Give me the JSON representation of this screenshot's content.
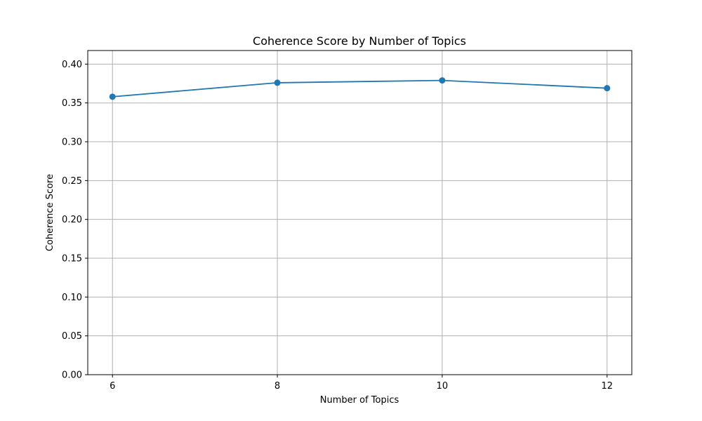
{
  "chart_data": {
    "type": "line",
    "title": "Coherence Score by Number of Topics",
    "xlabel": "Number of Topics",
    "ylabel": "Coherence Score",
    "x": [
      6,
      8,
      10,
      12
    ],
    "series": [
      {
        "values": [
          0.358,
          0.376,
          0.379,
          0.369
        ]
      }
    ],
    "xlim": [
      5.7,
      12.3
    ],
    "ylim": [
      0,
      0.4175
    ],
    "xticks": [
      6,
      8,
      10,
      12
    ],
    "xtick_labels": [
      "6",
      "8",
      "10",
      "12"
    ],
    "yticks": [
      0,
      0.05,
      0.1,
      0.15,
      0.2,
      0.25,
      0.3,
      0.35,
      0.4
    ],
    "ytick_labels": [
      "0.00",
      "0.05",
      "0.10",
      "0.15",
      "0.20",
      "0.25",
      "0.30",
      "0.35",
      "0.40"
    ],
    "grid": true,
    "marker": "circle",
    "color": "#1f77b4"
  }
}
